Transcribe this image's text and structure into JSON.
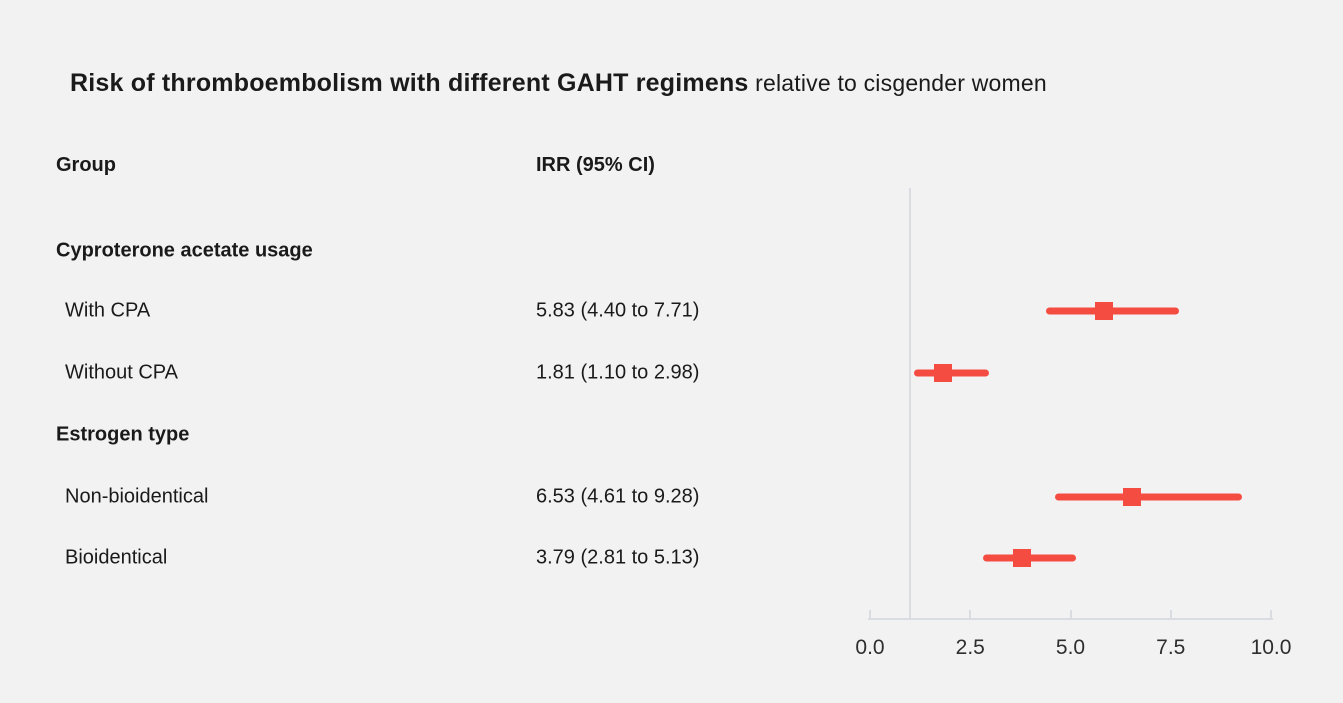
{
  "title": {
    "main": "Risk of thromboembolism with different GAHT regimens",
    "suffix": " relative to cisgender women"
  },
  "table": {
    "group_header": "Group",
    "irr_header": "IRR (95% CI)"
  },
  "chart_data": {
    "type": "scatter",
    "variant": "forest-plot",
    "xlabel": "",
    "ylabel": "",
    "xlim": [
      0.0,
      10.0
    ],
    "x_ticks": [
      "0.0",
      "2.5",
      "5.0",
      "7.5",
      "10.0"
    ],
    "x_tick_values": [
      0,
      2.5,
      5,
      7.5,
      10
    ],
    "reference_line_x": 1.0,
    "grid": false,
    "legend": "none",
    "rows": [
      {
        "type": "section",
        "label": "Cyproterone acetate usage"
      },
      {
        "type": "item",
        "label": "With CPA",
        "irr_text": "5.83 (4.40 to 7.71)",
        "irr": 5.83,
        "ci_low": 4.4,
        "ci_high": 7.71
      },
      {
        "type": "item",
        "label": "Without CPA",
        "irr_text": "1.81 (1.10 to 2.98)",
        "irr": 1.81,
        "ci_low": 1.1,
        "ci_high": 2.98
      },
      {
        "type": "section",
        "label": "Estrogen type"
      },
      {
        "type": "item",
        "label": "Non-bioidentical",
        "irr_text": "6.53 (4.61 to 9.28)",
        "irr": 6.53,
        "ci_low": 4.61,
        "ci_high": 9.28
      },
      {
        "type": "item",
        "label": "Bioidentical",
        "irr_text": "3.79 (2.81 to 5.13)",
        "irr": 3.79,
        "ci_low": 2.81,
        "ci_high": 5.13
      }
    ],
    "colors": {
      "marker": "#f54c42",
      "axis": "#d9dde1",
      "text": "#1a1a1a",
      "background": "#f2f2f2"
    }
  }
}
